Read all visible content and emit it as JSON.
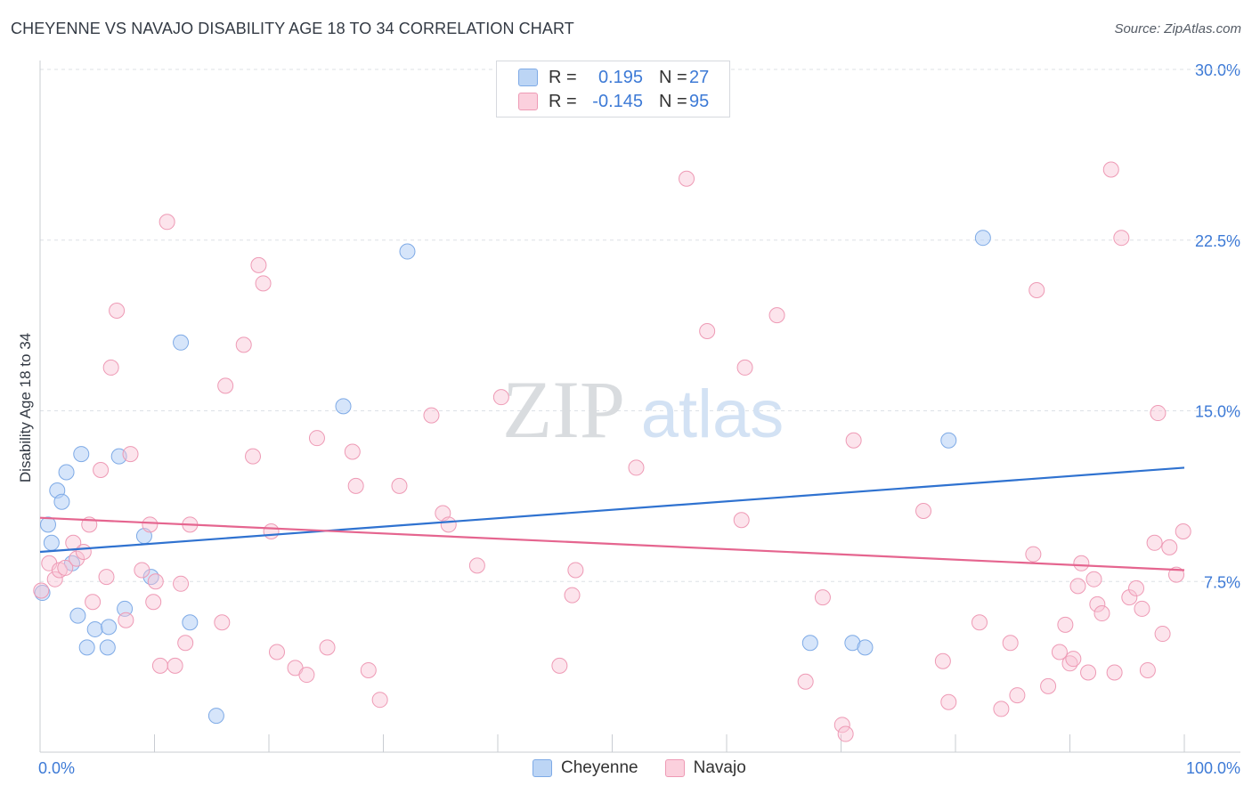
{
  "title": "CHEYENNE VS NAVAJO DISABILITY AGE 18 TO 34 CORRELATION CHART",
  "source": "Source: ZipAtlas.com",
  "watermark": {
    "zip": "ZIP",
    "atlas": "atlas"
  },
  "legend": {
    "r_label": "R =",
    "n_label": "N =",
    "series": [
      {
        "name": "Cheyenne",
        "r": "0.195",
        "n": "27",
        "color": "#a9c8f0",
        "border": "#7eaae6"
      },
      {
        "name": "Navajo",
        "r": "-0.145",
        "n": "95",
        "color": "#f7c3d3",
        "border": "#ee9ab5"
      }
    ]
  },
  "chart_data": {
    "type": "scatter",
    "title": "CHEYENNE VS NAVAJO DISABILITY AGE 18 TO 34 CORRELATION CHART",
    "xlabel": "",
    "ylabel": "Disability Age 18 to 34",
    "xlim": [
      0,
      100
    ],
    "ylim": [
      0,
      30
    ],
    "x_tick_labels": [
      "0.0%",
      "100.0%"
    ],
    "y_ticks": [
      7.5,
      15.0,
      22.5,
      30.0
    ],
    "y_tick_labels": [
      "7.5%",
      "15.0%",
      "22.5%",
      "30.0%"
    ],
    "grid": true,
    "series": [
      {
        "name": "Cheyenne",
        "color": "#a9c8f0",
        "line_color": "#2f72d0",
        "trend": {
          "x": [
            0,
            100
          ],
          "y": [
            8.8,
            12.5
          ]
        },
        "points": [
          [
            0.2,
            7.0
          ],
          [
            0.7,
            10.0
          ],
          [
            1.0,
            9.2
          ],
          [
            1.5,
            11.5
          ],
          [
            1.9,
            11.0
          ],
          [
            2.3,
            12.3
          ],
          [
            2.8,
            8.3
          ],
          [
            3.3,
            6.0
          ],
          [
            3.6,
            13.1
          ],
          [
            4.1,
            4.6
          ],
          [
            4.8,
            5.4
          ],
          [
            5.9,
            4.6
          ],
          [
            6.0,
            5.5
          ],
          [
            6.9,
            13.0
          ],
          [
            7.4,
            6.3
          ],
          [
            9.1,
            9.5
          ],
          [
            9.7,
            7.7
          ],
          [
            12.3,
            18.0
          ],
          [
            13.1,
            5.7
          ],
          [
            15.4,
            1.6
          ],
          [
            26.5,
            15.2
          ],
          [
            32.1,
            22.0
          ],
          [
            67.3,
            4.8
          ],
          [
            71.0,
            4.8
          ],
          [
            72.1,
            4.6
          ],
          [
            79.4,
            13.7
          ],
          [
            82.4,
            22.6
          ]
        ]
      },
      {
        "name": "Navajo",
        "color": "#f7c3d3",
        "line_color": "#e5658f",
        "trend": {
          "x": [
            0,
            100
          ],
          "y": [
            10.3,
            8.0
          ]
        },
        "points": [
          [
            0.1,
            7.1
          ],
          [
            0.8,
            8.3
          ],
          [
            1.3,
            7.6
          ],
          [
            1.7,
            8.0
          ],
          [
            2.2,
            8.1
          ],
          [
            2.9,
            9.2
          ],
          [
            3.2,
            8.5
          ],
          [
            3.8,
            8.8
          ],
          [
            4.3,
            10.0
          ],
          [
            4.6,
            6.6
          ],
          [
            5.3,
            12.4
          ],
          [
            5.8,
            7.7
          ],
          [
            6.2,
            16.9
          ],
          [
            6.7,
            19.4
          ],
          [
            7.5,
            5.8
          ],
          [
            7.9,
            13.1
          ],
          [
            8.9,
            8.0
          ],
          [
            9.6,
            10.0
          ],
          [
            9.9,
            6.6
          ],
          [
            10.1,
            7.5
          ],
          [
            10.5,
            3.8
          ],
          [
            11.1,
            23.3
          ],
          [
            11.8,
            3.8
          ],
          [
            12.3,
            7.4
          ],
          [
            12.7,
            4.8
          ],
          [
            13.1,
            10.0
          ],
          [
            15.9,
            5.7
          ],
          [
            16.2,
            16.1
          ],
          [
            17.8,
            17.9
          ],
          [
            18.6,
            13.0
          ],
          [
            19.1,
            21.4
          ],
          [
            19.5,
            20.6
          ],
          [
            20.2,
            9.7
          ],
          [
            20.7,
            4.4
          ],
          [
            22.3,
            3.7
          ],
          [
            23.3,
            3.4
          ],
          [
            24.2,
            13.8
          ],
          [
            25.1,
            4.6
          ],
          [
            27.3,
            13.2
          ],
          [
            27.6,
            11.7
          ],
          [
            28.7,
            3.6
          ],
          [
            29.7,
            2.3
          ],
          [
            31.4,
            11.7
          ],
          [
            34.2,
            14.8
          ],
          [
            35.2,
            10.5
          ],
          [
            35.7,
            10.0
          ],
          [
            38.2,
            8.2
          ],
          [
            40.3,
            15.6
          ],
          [
            45.4,
            3.8
          ],
          [
            46.5,
            6.9
          ],
          [
            46.8,
            8.0
          ],
          [
            52.1,
            12.5
          ],
          [
            56.5,
            25.2
          ],
          [
            58.3,
            18.5
          ],
          [
            61.3,
            10.2
          ],
          [
            61.6,
            16.9
          ],
          [
            64.4,
            19.2
          ],
          [
            66.9,
            3.1
          ],
          [
            68.4,
            6.8
          ],
          [
            70.1,
            1.2
          ],
          [
            70.4,
            0.8
          ],
          [
            71.1,
            13.7
          ],
          [
            77.2,
            10.6
          ],
          [
            78.9,
            4.0
          ],
          [
            79.4,
            2.2
          ],
          [
            82.1,
            5.7
          ],
          [
            84.0,
            1.9
          ],
          [
            84.8,
            4.8
          ],
          [
            85.4,
            2.5
          ],
          [
            86.8,
            8.7
          ],
          [
            87.1,
            20.3
          ],
          [
            88.1,
            2.9
          ],
          [
            89.1,
            4.4
          ],
          [
            89.6,
            5.6
          ],
          [
            90.0,
            3.9
          ],
          [
            90.3,
            4.1
          ],
          [
            90.7,
            7.3
          ],
          [
            91.0,
            8.3
          ],
          [
            91.6,
            3.5
          ],
          [
            92.1,
            7.6
          ],
          [
            92.4,
            6.5
          ],
          [
            92.8,
            6.1
          ],
          [
            93.6,
            25.6
          ],
          [
            93.9,
            3.5
          ],
          [
            94.5,
            22.6
          ],
          [
            95.2,
            6.8
          ],
          [
            95.8,
            7.2
          ],
          [
            96.3,
            6.3
          ],
          [
            96.8,
            3.6
          ],
          [
            97.4,
            9.2
          ],
          [
            97.7,
            14.9
          ],
          [
            98.1,
            5.2
          ],
          [
            98.7,
            9.0
          ],
          [
            99.3,
            7.8
          ],
          [
            99.9,
            9.7
          ]
        ]
      }
    ]
  }
}
